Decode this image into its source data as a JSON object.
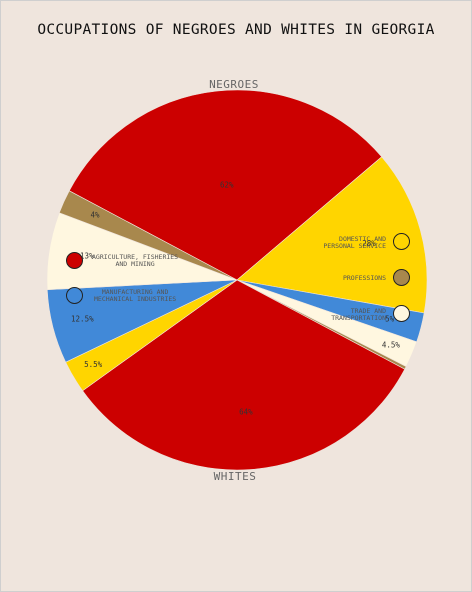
{
  "chart_data": {
    "type": "pie",
    "title": "OCCUPATIONS OF NEGROES AND WHITES IN GEORGIA",
    "groups": [
      {
        "name": "NEGROES",
        "slices": [
          {
            "category": "AGRICULTURE, FISHERIES AND MINING",
            "value": 62,
            "label": "62%"
          },
          {
            "category": "DOMESTIC AND PERSONAL SERVICE",
            "value": 28,
            "label": "28%"
          },
          {
            "category": "MANUFACTURING AND MECHANICAL INDUSTRIES",
            "value": 5,
            "label": "5%"
          },
          {
            "category": "TRADE AND TRANSPORTATION",
            "value": 4.5,
            "label": "4.5%"
          },
          {
            "category": "PROFESSIONS",
            "value": 0.5,
            "label": ""
          }
        ]
      },
      {
        "name": "WHITES",
        "slices": [
          {
            "category": "AGRICULTURE, FISHERIES AND MINING",
            "value": 64,
            "label": "64%"
          },
          {
            "category": "DOMESTIC AND PERSONAL SERVICE",
            "value": 5.5,
            "label": "5.5%"
          },
          {
            "category": "MANUFACTURING AND MECHANICAL INDUSTRIES",
            "value": 12.5,
            "label": "12.5%"
          },
          {
            "category": "TRADE AND TRANSPORTATION",
            "value": 13,
            "label": "13%"
          },
          {
            "category": "PROFESSIONS",
            "value": 4,
            "label": "4%"
          }
        ]
      }
    ],
    "legend": [
      {
        "label": "AGRICULTURE, FISHERIES\nAND MINING",
        "color": "#cc0000",
        "side": "left"
      },
      {
        "label": "MANUFACTURING AND\nMECHANICAL INDUSTRIES",
        "color": "#4189d8",
        "side": "left"
      },
      {
        "label": "DOMESTIC AND\nPERSONAL SERVICE",
        "color": "#ffd500",
        "side": "right"
      },
      {
        "label": "PROFESSIONS",
        "color": "#a8884d",
        "side": "right"
      },
      {
        "label": "TRADE AND\nTRANSPORTATION",
        "color": "#fff7e0",
        "side": "right"
      }
    ]
  }
}
